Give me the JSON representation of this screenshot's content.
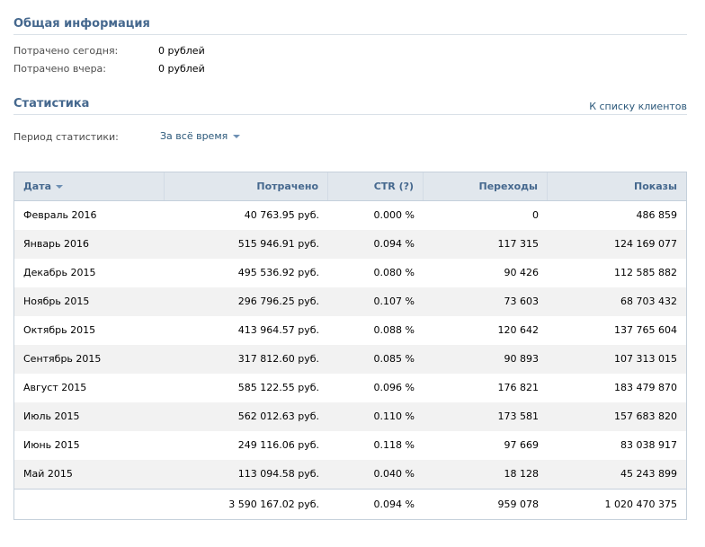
{
  "general": {
    "title": "Общая информация",
    "spent_today_label": "Потрачено сегодня:",
    "spent_today_value": "0 рублей",
    "spent_yesterday_label": "Потрачено вчера:",
    "spent_yesterday_value": "0 рублей"
  },
  "stats": {
    "title": "Статистика",
    "client_list_link": "К списку клиентов",
    "period_label": "Период статистики:",
    "period_value": "За всё время"
  },
  "table": {
    "columns": [
      "Дата",
      "Потрачено",
      "CTR (?)",
      "Переходы",
      "Показы"
    ],
    "rows": [
      [
        "Февраль 2016",
        "40 763.95 руб.",
        "0.000 %",
        "0",
        "486 859"
      ],
      [
        "Январь 2016",
        "515 946.91 руб.",
        "0.094 %",
        "117 315",
        "124 169 077"
      ],
      [
        "Декабрь 2015",
        "495 536.92 руб.",
        "0.080 %",
        "90 426",
        "112 585 882"
      ],
      [
        "Ноябрь 2015",
        "296 796.25 руб.",
        "0.107 %",
        "73 603",
        "68 703 432"
      ],
      [
        "Октябрь 2015",
        "413 964.57 руб.",
        "0.088 %",
        "120 642",
        "137 765 604"
      ],
      [
        "Сентябрь 2015",
        "317 812.60 руб.",
        "0.085 %",
        "90 893",
        "107 313 015"
      ],
      [
        "Август 2015",
        "585 122.55 руб.",
        "0.096 %",
        "176 821",
        "183 479 870"
      ],
      [
        "Июль 2015",
        "562 012.63 руб.",
        "0.110 %",
        "173 581",
        "157 683 820"
      ],
      [
        "Июнь 2015",
        "249 116.06 руб.",
        "0.118 %",
        "97 669",
        "83 038 917"
      ],
      [
        "Май 2015",
        "113 094.58 руб.",
        "0.040 %",
        "18 128",
        "45 243 899"
      ]
    ],
    "totals": [
      "",
      "3 590 167.02 руб.",
      "0.094 %",
      "959 078",
      "1 020 470 375"
    ]
  },
  "colors": {
    "accent": "#45688e",
    "link": "#2b587a",
    "header_bg": "#e1e7ed",
    "alt_row_bg": "#f2f2f2"
  }
}
